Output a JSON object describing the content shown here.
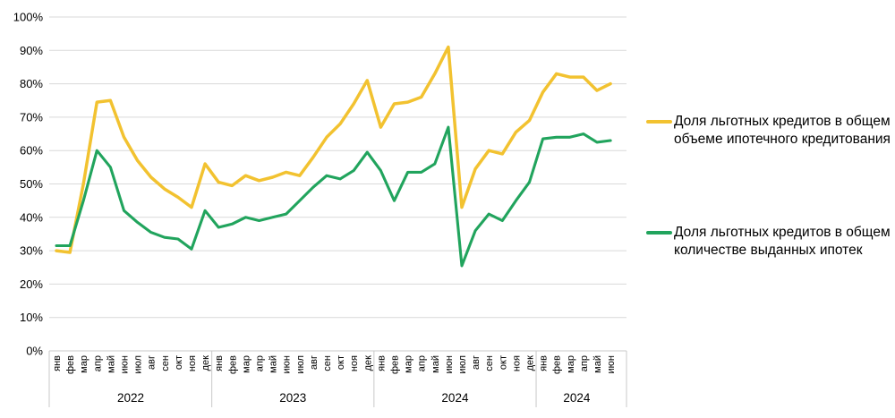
{
  "chart_data": {
    "type": "line",
    "title": "",
    "grid": true,
    "legend_position": "right",
    "gridline_color": "#D9D9D9",
    "axis_line_color": "#C9C9C9",
    "text_color": "#000000",
    "y_axis": {
      "min": 0,
      "max": 100,
      "ticks": [
        "0%",
        "10%",
        "20%",
        "30%",
        "40%",
        "50%",
        "60%",
        "70%",
        "80%",
        "90%",
        "100%"
      ]
    },
    "x_axis": {
      "groups": [
        {
          "year": "2022",
          "months": [
            "янв",
            "фев",
            "мар",
            "апр",
            "май",
            "июн",
            "июл",
            "авг",
            "сен",
            "окт",
            "ноя",
            "дек"
          ]
        },
        {
          "year": "2023",
          "months": [
            "янв",
            "фев",
            "мар",
            "апр",
            "май",
            "июн",
            "июл",
            "авг",
            "сен",
            "окт",
            "ноя",
            "дек"
          ]
        },
        {
          "year": "2024",
          "months": [
            "янв",
            "фев",
            "мар",
            "апр",
            "май",
            "июн",
            "июл",
            "авг",
            "сен",
            "окт",
            "ноя",
            "дек"
          ]
        },
        {
          "year": "2024",
          "months": [
            "янв",
            "фев",
            "мар",
            "апр",
            "май",
            "июн"
          ]
        }
      ]
    },
    "series": [
      {
        "name": "Доля льготных кредитов в общем объеме ипотечного кредитования",
        "color": "#F2C230",
        "values": [
          30,
          29.5,
          50,
          74.5,
          75,
          64,
          57,
          52,
          48.5,
          46,
          43,
          56,
          50.5,
          49.5,
          52.5,
          51,
          52,
          53.5,
          52.5,
          58,
          64,
          68,
          74,
          81,
          67,
          74,
          74.5,
          76,
          83,
          91,
          43,
          54.5,
          60,
          59,
          65.5,
          69,
          77.5,
          83,
          82,
          82,
          78,
          80
        ]
      },
      {
        "name": "Доля льготных кредитов в общем количестве выданных ипотек",
        "color": "#21A45D",
        "values": [
          31.5,
          31.5,
          45,
          60,
          55,
          42,
          38.5,
          35.5,
          34,
          33.5,
          30.5,
          42,
          37,
          38,
          40,
          39,
          40,
          41,
          45,
          49,
          52.5,
          51.5,
          54,
          59.5,
          54,
          45,
          53.5,
          53.5,
          56,
          67,
          25.5,
          36,
          41,
          39,
          45,
          50.5,
          63.5,
          64,
          64,
          65,
          62.5,
          63
        ]
      }
    ]
  }
}
